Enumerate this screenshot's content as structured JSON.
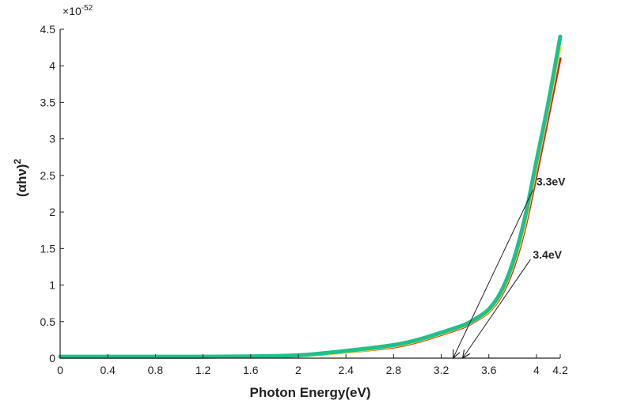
{
  "chart_data": {
    "type": "line",
    "title": "",
    "xlabel": "Photon Energy(eV)",
    "ylabel_base": "(αhν)",
    "ylabel_sup": "2",
    "scale_base": "×10",
    "scale_exp": "-52",
    "xlim": [
      0,
      4.2
    ],
    "ylim": [
      0,
      4.5
    ],
    "x_ticks": [
      0,
      0.4,
      0.8,
      1.2,
      1.6,
      2,
      2.4,
      2.8,
      3.2,
      3.6,
      4,
      4.2
    ],
    "x_tick_labels": [
      "0",
      "0.4",
      "0.8",
      "1.2",
      "1.6",
      "2",
      "2.4",
      "2.8",
      "3.2",
      "3.6",
      "4",
      "4.2"
    ],
    "y_ticks": [
      0,
      0.5,
      1,
      1.5,
      2,
      2.5,
      3,
      3.5,
      4,
      4.5
    ],
    "y_tick_labels": [
      "0",
      "0.5",
      "1",
      "1.5",
      "2",
      "2.5",
      "3",
      "3.5",
      "4",
      "4.5"
    ],
    "grid": false,
    "series": [
      {
        "color": "#d42a1e",
        "x": [
          0,
          0.4,
          0.8,
          1.2,
          1.6,
          2.0,
          2.4,
          2.8,
          3.0,
          3.2,
          3.4,
          3.5,
          3.6,
          3.7,
          3.8,
          3.9,
          4.0,
          4.1,
          4.2
        ],
        "y": [
          0.01,
          0.01,
          0.01,
          0.01,
          0.015,
          0.03,
          0.08,
          0.15,
          0.22,
          0.32,
          0.43,
          0.52,
          0.63,
          0.84,
          1.2,
          1.75,
          2.5,
          3.3,
          4.1
        ]
      },
      {
        "color": "#f2e233",
        "x": [
          0,
          0.4,
          0.8,
          1.2,
          1.6,
          2.0,
          2.4,
          2.8,
          3.0,
          3.2,
          3.4,
          3.5,
          3.6,
          3.7,
          3.8,
          3.9,
          4.0,
          4.1,
          4.2
        ],
        "y": [
          0.01,
          0.01,
          0.01,
          0.01,
          0.015,
          0.03,
          0.08,
          0.16,
          0.23,
          0.33,
          0.44,
          0.53,
          0.64,
          0.86,
          1.24,
          1.8,
          2.6,
          3.4,
          4.25
        ]
      },
      {
        "color": "#2fd35a",
        "x": [
          0,
          0.4,
          0.8,
          1.2,
          1.6,
          2.0,
          2.4,
          2.8,
          3.0,
          3.2,
          3.4,
          3.5,
          3.6,
          3.7,
          3.8,
          3.9,
          4.0,
          4.1,
          4.2
        ],
        "y": [
          0.01,
          0.01,
          0.01,
          0.01,
          0.015,
          0.03,
          0.09,
          0.17,
          0.24,
          0.34,
          0.45,
          0.54,
          0.66,
          0.9,
          1.3,
          1.9,
          2.7,
          3.5,
          4.37
        ]
      },
      {
        "color": "#1fc08c",
        "x": [
          0,
          0.4,
          0.8,
          1.2,
          1.6,
          2.0,
          2.4,
          2.8,
          3.0,
          3.2,
          3.4,
          3.5,
          3.6,
          3.7,
          3.8,
          3.9,
          4.0,
          4.1,
          4.2
        ],
        "y": [
          0.02,
          0.02,
          0.02,
          0.02,
          0.025,
          0.04,
          0.1,
          0.18,
          0.25,
          0.35,
          0.46,
          0.55,
          0.67,
          0.9,
          1.3,
          1.9,
          2.7,
          3.5,
          4.4
        ]
      }
    ],
    "annotations": [
      {
        "text": "3.3eV",
        "x_intercept": 3.3,
        "line_end": [
          3.97,
          2.3
        ],
        "label_at": [
          4.0,
          2.32
        ]
      },
      {
        "text": "3.4eV",
        "x_intercept": 3.38,
        "line_end": [
          3.95,
          1.35
        ],
        "label_at": [
          3.97,
          1.32
        ]
      }
    ]
  }
}
